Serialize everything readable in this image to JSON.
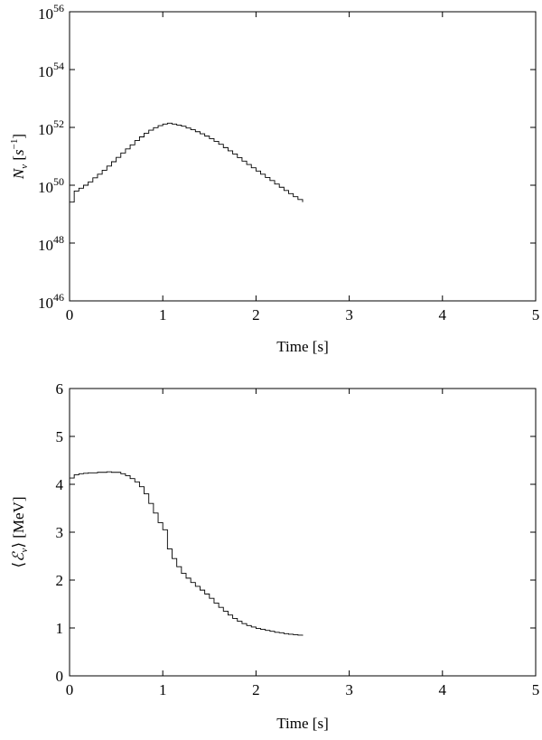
{
  "chart_data": [
    {
      "type": "line",
      "step": true,
      "xlabel": "Time [s]",
      "ylabel": "N_ν [s⁻¹]",
      "yscale": "log",
      "xlim": [
        0,
        5
      ],
      "ylim": [
        1e+46,
        1e+56
      ],
      "xticks": [
        "0",
        "1",
        "2",
        "3",
        "4",
        "5"
      ],
      "yticks": [
        {
          "base": "10",
          "exp": "46"
        },
        {
          "base": "10",
          "exp": "48"
        },
        {
          "base": "10",
          "exp": "50"
        },
        {
          "base": "10",
          "exp": "52"
        },
        {
          "base": "10",
          "exp": "54"
        },
        {
          "base": "10",
          "exp": "56"
        }
      ],
      "grid": false,
      "x": [
        0.0,
        0.05,
        0.1,
        0.15,
        0.2,
        0.25,
        0.3,
        0.35,
        0.4,
        0.45,
        0.5,
        0.55,
        0.6,
        0.65,
        0.7,
        0.75,
        0.8,
        0.85,
        0.9,
        0.95,
        1.0,
        1.05,
        1.1,
        1.15,
        1.2,
        1.25,
        1.3,
        1.35,
        1.4,
        1.45,
        1.5,
        1.55,
        1.6,
        1.65,
        1.7,
        1.75,
        1.8,
        1.85,
        1.9,
        1.95,
        2.0,
        2.05,
        2.1,
        2.15,
        2.2,
        2.25,
        2.3,
        2.35,
        2.4,
        2.45,
        2.5
      ],
      "y": [
        2.6e+49,
        6.3e+49,
        7.9e+49,
        1e+50,
        1.3e+50,
        1.8e+50,
        2.4e+50,
        3.3e+50,
        4.6e+50,
        6.5e+50,
        9.2e+50,
        1.3e+51,
        1.8e+51,
        2.5e+51,
        3.5e+51,
        4.7e+51,
        6.3e+51,
        8e+51,
        9.8e+51,
        1.15e+52,
        1.3e+52,
        1.4e+52,
        1.3e+52,
        1.2e+52,
        1.1e+52,
        9.5e+51,
        8.3e+51,
        7.1e+51,
        6e+51,
        5e+51,
        4.1e+51,
        3.3e+51,
        2.6e+51,
        2e+51,
        1.55e+51,
        1.2e+51,
        9e+50,
        6.8e+50,
        5.2e+50,
        4e+50,
        3.1e+50,
        2.4e+50,
        1.85e+50,
        1.45e+50,
        1.1e+50,
        8.5e+49,
        6.6e+49,
        5.1e+49,
        4e+49,
        3.2e+49,
        2.6e+49
      ]
    },
    {
      "type": "line",
      "step": true,
      "xlabel": "Time [s]",
      "ylabel": "⟨ℰ_ν⟩ [MeV]",
      "xlim": [
        0,
        5
      ],
      "ylim": [
        0,
        6
      ],
      "xticks": [
        "0",
        "1",
        "2",
        "3",
        "4",
        "5"
      ],
      "yticks": [
        "0",
        "1",
        "2",
        "3",
        "4",
        "5",
        "6"
      ],
      "grid": false,
      "x": [
        0.0,
        0.05,
        0.1,
        0.15,
        0.2,
        0.25,
        0.3,
        0.35,
        0.4,
        0.45,
        0.5,
        0.55,
        0.6,
        0.65,
        0.7,
        0.75,
        0.8,
        0.85,
        0.9,
        0.95,
        1.0,
        1.05,
        1.1,
        1.15,
        1.2,
        1.25,
        1.3,
        1.35,
        1.4,
        1.45,
        1.5,
        1.55,
        1.6,
        1.65,
        1.7,
        1.75,
        1.8,
        1.85,
        1.9,
        1.95,
        2.0,
        2.05,
        2.1,
        2.15,
        2.2,
        2.25,
        2.3,
        2.35,
        2.4,
        2.45,
        2.5
      ],
      "y": [
        4.13,
        4.2,
        4.22,
        4.23,
        4.24,
        4.24,
        4.25,
        4.25,
        4.26,
        4.25,
        4.25,
        4.22,
        4.18,
        4.12,
        4.05,
        3.95,
        3.8,
        3.6,
        3.4,
        3.2,
        3.05,
        2.65,
        2.45,
        2.28,
        2.14,
        2.04,
        1.95,
        1.87,
        1.79,
        1.71,
        1.62,
        1.52,
        1.43,
        1.35,
        1.27,
        1.2,
        1.14,
        1.09,
        1.05,
        1.02,
        0.99,
        0.97,
        0.95,
        0.93,
        0.91,
        0.9,
        0.88,
        0.87,
        0.86,
        0.85,
        0.84
      ]
    }
  ]
}
